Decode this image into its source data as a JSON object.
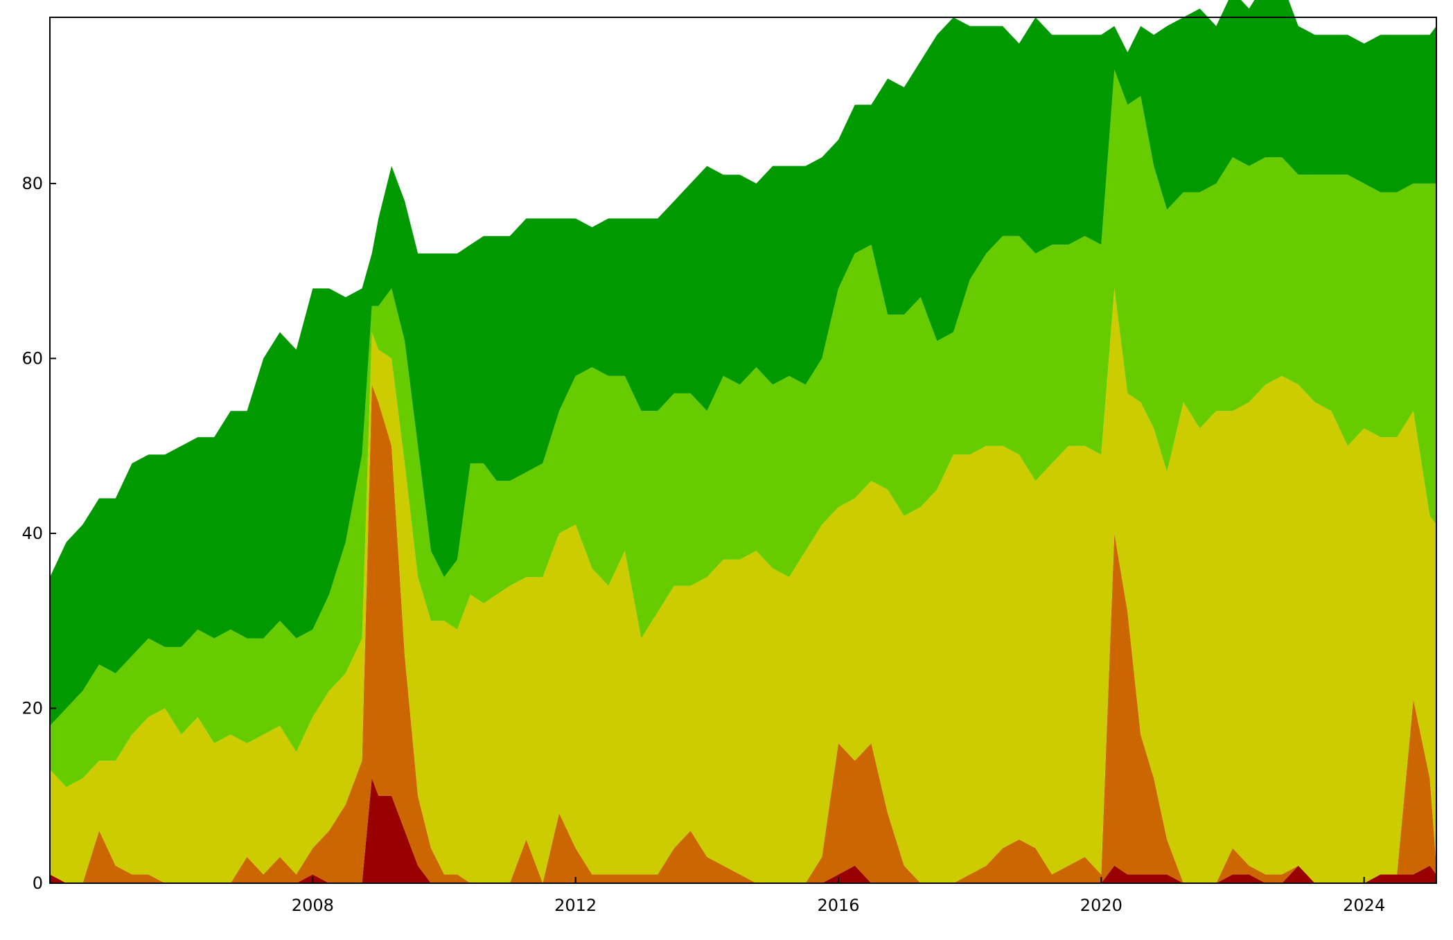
{
  "chart_data": {
    "type": "area",
    "stacked": true,
    "title": "",
    "xlabel": "",
    "ylabel": "",
    "xlim": [
      2004.0,
      2025.1
    ],
    "ylim": [
      0,
      99
    ],
    "xticks": [
      2008,
      2012,
      2016,
      2020,
      2024
    ],
    "xtick_labels": [
      "2008",
      "2012",
      "2016",
      "2020",
      "2024"
    ],
    "yticks": [
      0,
      20,
      40,
      60,
      80
    ],
    "ytick_labels": [
      "0",
      "20",
      "40",
      "60",
      "80"
    ],
    "grid": false,
    "legend": "none",
    "x": [
      2004.0,
      2004.25,
      2004.5,
      2004.75,
      2005.0,
      2005.25,
      2005.5,
      2005.75,
      2006.0,
      2006.25,
      2006.5,
      2006.75,
      2007.0,
      2007.25,
      2007.5,
      2007.75,
      2008.0,
      2008.25,
      2008.5,
      2008.75,
      2008.9,
      2009.0,
      2009.2,
      2009.4,
      2009.6,
      2009.8,
      2010.0,
      2010.2,
      2010.4,
      2010.6,
      2010.8,
      2011.0,
      2011.25,
      2011.5,
      2011.75,
      2012.0,
      2012.25,
      2012.5,
      2012.75,
      2013.0,
      2013.25,
      2013.5,
      2013.75,
      2014.0,
      2014.25,
      2014.5,
      2014.75,
      2015.0,
      2015.25,
      2015.5,
      2015.75,
      2016.0,
      2016.25,
      2016.5,
      2016.75,
      2017.0,
      2017.25,
      2017.5,
      2017.75,
      2018.0,
      2018.25,
      2018.5,
      2018.75,
      2019.0,
      2019.25,
      2019.5,
      2019.75,
      2020.0,
      2020.2,
      2020.4,
      2020.6,
      2020.8,
      2021.0,
      2021.25,
      2021.5,
      2021.75,
      2022.0,
      2022.25,
      2022.5,
      2022.75,
      2023.0,
      2023.25,
      2023.5,
      2023.75,
      2024.0,
      2024.25,
      2024.5,
      2024.75,
      2025.0,
      2025.1
    ],
    "series": [
      {
        "color": "#990000",
        "values": [
          1,
          0,
          0,
          0,
          0,
          0,
          0,
          0,
          0,
          0,
          0,
          0,
          0,
          0,
          0,
          0,
          1,
          0,
          0,
          0,
          12,
          10,
          10,
          6,
          2,
          0,
          0,
          0,
          0,
          0,
          0,
          0,
          0,
          0,
          0,
          0,
          0,
          0,
          0,
          0,
          0,
          0,
          0,
          0,
          0,
          0,
          0,
          0,
          0,
          0,
          0,
          1,
          2,
          0,
          0,
          0,
          0,
          0,
          0,
          0,
          0,
          0,
          0,
          0,
          0,
          0,
          0,
          0,
          2,
          1,
          1,
          1,
          1,
          0,
          0,
          0,
          1,
          1,
          0,
          0,
          2,
          0,
          0,
          0,
          0,
          1,
          1,
          1,
          2,
          1
        ]
      },
      {
        "color": "#cc6600",
        "values": [
          0,
          0,
          0,
          6,
          2,
          1,
          1,
          0,
          0,
          0,
          0,
          0,
          3,
          1,
          3,
          1,
          3,
          6,
          9,
          14,
          45,
          45,
          40,
          20,
          8,
          4,
          1,
          1,
          0,
          0,
          0,
          0,
          5,
          0,
          8,
          4,
          1,
          1,
          1,
          1,
          1,
          4,
          6,
          3,
          2,
          1,
          0,
          0,
          0,
          0,
          3,
          15,
          12,
          16,
          8,
          2,
          0,
          0,
          0,
          1,
          2,
          4,
          5,
          4,
          1,
          2,
          3,
          1,
          38,
          30,
          16,
          11,
          4,
          0,
          0,
          0,
          3,
          1,
          1,
          1,
          0,
          0,
          0,
          0,
          0,
          0,
          0,
          20,
          10,
          1
        ]
      },
      {
        "color": "#cccc00",
        "values": [
          12,
          11,
          12,
          8,
          12,
          16,
          18,
          20,
          17,
          19,
          16,
          17,
          13,
          16,
          15,
          14,
          15,
          16,
          15,
          14,
          6,
          6,
          10,
          22,
          25,
          26,
          29,
          28,
          33,
          32,
          33,
          34,
          30,
          35,
          32,
          37,
          35,
          33,
          37,
          27,
          30,
          30,
          28,
          32,
          35,
          36,
          38,
          36,
          35,
          38,
          38,
          27,
          30,
          30,
          37,
          40,
          43,
          45,
          49,
          48,
          48,
          46,
          44,
          42,
          47,
          48,
          47,
          48,
          28,
          25,
          38,
          40,
          42,
          55,
          52,
          54,
          50,
          53,
          56,
          57,
          55,
          55,
          54,
          50,
          52,
          50,
          50,
          33,
          30,
          39
        ]
      },
      {
        "color": "#66cc00",
        "values": [
          5,
          9,
          10,
          11,
          10,
          9,
          9,
          7,
          10,
          10,
          12,
          12,
          12,
          11,
          12,
          13,
          10,
          11,
          15,
          21,
          3,
          5,
          8,
          14,
          15,
          8,
          5,
          8,
          15,
          16,
          13,
          12,
          12,
          13,
          14,
          17,
          23,
          24,
          20,
          26,
          23,
          22,
          22,
          19,
          21,
          20,
          21,
          21,
          23,
          19,
          19,
          25,
          28,
          27,
          20,
          23,
          24,
          17,
          14,
          20,
          22,
          24,
          25,
          26,
          25,
          23,
          24,
          24,
          25,
          33,
          35,
          30,
          30,
          24,
          27,
          26,
          29,
          27,
          26,
          25,
          24,
          26,
          27,
          31,
          28,
          28,
          28,
          26,
          38,
          39
        ]
      },
      {
        "color": "#009900",
        "values": [
          17,
          19,
          19,
          19,
          20,
          22,
          21,
          22,
          23,
          22,
          23,
          25,
          26,
          32,
          33,
          33,
          39,
          35,
          28,
          19,
          6,
          10,
          14,
          16,
          22,
          34,
          37,
          35,
          25,
          26,
          28,
          28,
          29,
          28,
          22,
          18,
          16,
          18,
          18,
          22,
          22,
          22,
          24,
          28,
          23,
          24,
          21,
          25,
          24,
          25,
          23,
          17,
          17,
          16,
          27,
          26,
          27,
          35,
          36,
          29,
          26,
          24,
          22,
          27,
          24,
          24,
          23,
          24,
          5,
          6,
          8,
          15,
          21,
          20,
          21,
          18,
          19,
          18,
          20,
          20,
          17,
          16,
          16,
          16,
          16,
          18,
          18,
          17,
          17,
          18
        ]
      }
    ]
  }
}
